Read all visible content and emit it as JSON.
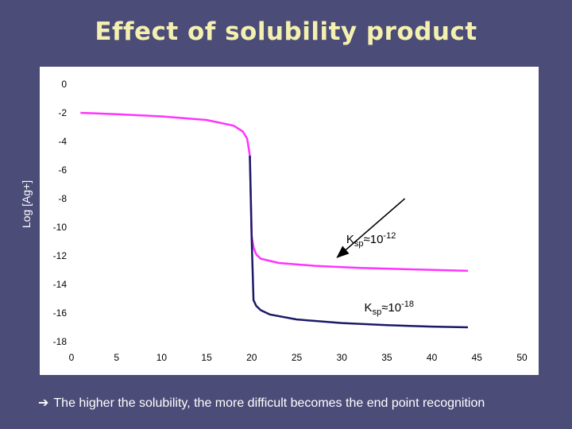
{
  "title": "Effect of solubility product",
  "footer": {
    "arrow_icon": "right-arrow-icon",
    "text": "The higher the solubility, the more difficult becomes the end point recognition"
  },
  "chart_data": {
    "type": "line",
    "title": "Effect of solubility product",
    "xlabel": "",
    "ylabel": "Log [Ag+]",
    "xlim": [
      0,
      50
    ],
    "ylim": [
      -18,
      0
    ],
    "x_ticks": [
      0,
      5,
      10,
      15,
      20,
      25,
      30,
      35,
      40,
      45,
      50
    ],
    "y_ticks": [
      0,
      -2,
      -4,
      -6,
      -8,
      -10,
      -12,
      -14,
      -16,
      -18
    ],
    "grid": false,
    "legend": "none",
    "series": [
      {
        "color": "#ff33ff",
        "x": [
          1,
          5,
          10,
          15,
          18,
          19,
          19.5,
          19.8,
          20,
          20.2,
          20.5,
          21,
          23,
          27,
          32,
          38,
          44
        ],
        "y": [
          -2.0,
          -2.1,
          -2.25,
          -2.5,
          -2.9,
          -3.3,
          -3.8,
          -5.0,
          -10.6,
          -11.4,
          -11.9,
          -12.2,
          -12.5,
          -12.7,
          -12.85,
          -12.95,
          -13.05
        ]
      },
      {
        "color": "#1a1a66",
        "x": [
          19.8,
          20,
          20.2,
          20.5,
          21,
          22,
          25,
          30,
          35,
          40,
          44
        ],
        "y": [
          -5.0,
          -10.8,
          -15.1,
          -15.5,
          -15.8,
          -16.1,
          -16.45,
          -16.7,
          -16.85,
          -16.95,
          -17.0
        ]
      }
    ],
    "annotations": [
      {
        "base": "K",
        "sub": "sp",
        "mid": "≈10",
        "sup": "-12",
        "x": 30.5,
        "y": -11.1
      },
      {
        "base": "K",
        "sub": "sp",
        "mid": "≈10",
        "sup": "-18",
        "x": 32.5,
        "y": -15.9
      }
    ],
    "annotation_arrow": {
      "from": [
        37,
        -8.0
      ],
      "to": [
        29.5,
        -12.1
      ]
    }
  }
}
